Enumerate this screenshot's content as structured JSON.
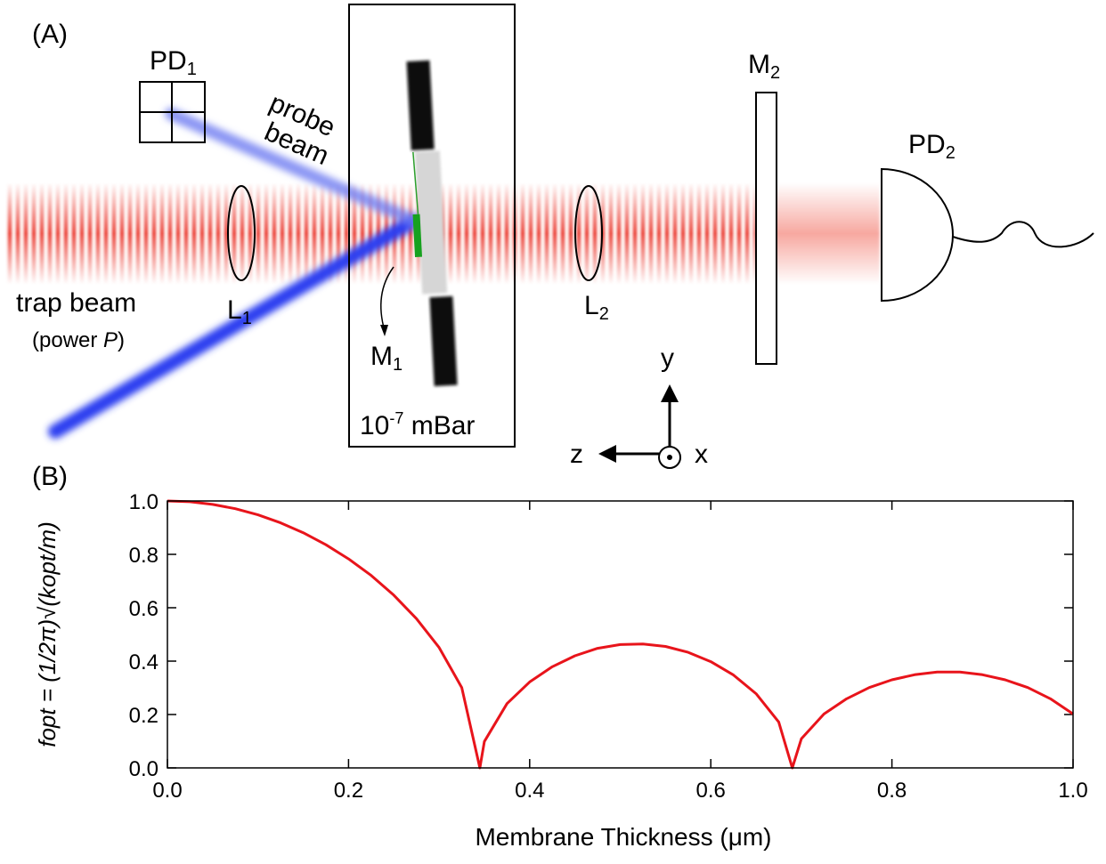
{
  "panel_a": {
    "label": "(A)",
    "pd1": {
      "main": "PD",
      "sub": "1"
    },
    "pd2": {
      "main": "PD",
      "sub": "2"
    },
    "l1": {
      "main": "L",
      "sub": "1"
    },
    "l2": {
      "main": "L",
      "sub": "2"
    },
    "m1": {
      "main": "M",
      "sub": "1"
    },
    "m2": {
      "main": "M",
      "sub": "2"
    },
    "probe_beam": [
      "probe",
      "beam"
    ],
    "trap_beam": "trap beam",
    "power": {
      "open": "(power ",
      "symbol": "P",
      "close": ")"
    },
    "pressure": {
      "base": "10",
      "sup": "-7",
      "rest": " mBar"
    },
    "axes": {
      "y": "y",
      "z": "z",
      "x": "x"
    }
  },
  "chart_data": {
    "type": "line",
    "panel_label": "(B)",
    "x_label": "Membrane Thickness (μm)",
    "y_label": "fopt = (1/2π)√(kopt/m)",
    "x": [
      0,
      0.025,
      0.05,
      0.075,
      0.1,
      0.125,
      0.15,
      0.175,
      0.2,
      0.225,
      0.25,
      0.275,
      0.3,
      0.325,
      0.345,
      0.35,
      0.375,
      0.4,
      0.425,
      0.45,
      0.475,
      0.5,
      0.525,
      0.55,
      0.575,
      0.6,
      0.625,
      0.65,
      0.675,
      0.69,
      0.7,
      0.725,
      0.75,
      0.775,
      0.8,
      0.825,
      0.85,
      0.875,
      0.9,
      0.925,
      0.95,
      0.975,
      1.0
    ],
    "series": [
      {
        "color": "#e8141b",
        "values": [
          1.0,
          0.997,
          0.987,
          0.971,
          0.948,
          0.918,
          0.881,
          0.836,
          0.783,
          0.721,
          0.647,
          0.559,
          0.451,
          0.301,
          0,
          0.099,
          0.241,
          0.322,
          0.379,
          0.42,
          0.448,
          0.462,
          0.464,
          0.455,
          0.433,
          0.398,
          0.348,
          0.278,
          0.172,
          0,
          0.109,
          0.202,
          0.259,
          0.301,
          0.33,
          0.349,
          0.359,
          0.359,
          0.349,
          0.33,
          0.301,
          0.259,
          0.202
        ]
      }
    ],
    "xlim": [
      0,
      1.0
    ],
    "ylim": [
      0,
      1.0
    ],
    "xticks": [
      {
        "value": 0,
        "label": "0.0"
      },
      0.2,
      0.4,
      0.6,
      0.8,
      {
        "value": 1,
        "label": "1.0"
      }
    ],
    "yticks": [
      {
        "value": 0,
        "label": "0.0"
      },
      0.2,
      0.4,
      0.6,
      0.8,
      {
        "value": 1,
        "label": "1.0"
      }
    ]
  }
}
